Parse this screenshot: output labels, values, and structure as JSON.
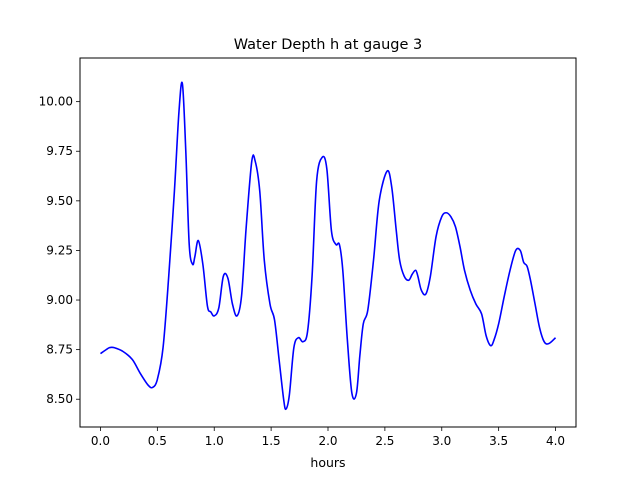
{
  "chart_data": {
    "type": "line",
    "title": "Water Depth h at gauge 3",
    "xlabel": "hours",
    "ylabel": "",
    "xlim": [
      -0.18,
      4.18
    ],
    "ylim": [
      8.36,
      10.22
    ],
    "grid": false,
    "x_ticks": [
      0.0,
      0.5,
      1.0,
      1.5,
      2.0,
      2.5,
      3.0,
      3.5,
      4.0
    ],
    "x_tick_labels": [
      "0.0",
      "0.5",
      "1.0",
      "1.5",
      "2.0",
      "2.5",
      "3.0",
      "3.5",
      "4.0"
    ],
    "y_ticks": [
      8.5,
      8.75,
      9.0,
      9.25,
      9.5,
      9.75,
      10.0
    ],
    "y_tick_labels": [
      "8.50",
      "8.75",
      "9.00",
      "9.25",
      "9.50",
      "9.75",
      "10.00"
    ],
    "series": [
      {
        "color": "#0000ff",
        "x": [
          0.0,
          0.05,
          0.08,
          0.12,
          0.2,
          0.28,
          0.35,
          0.42,
          0.46,
          0.5,
          0.55,
          0.6,
          0.65,
          0.69,
          0.72,
          0.75,
          0.78,
          0.81,
          0.83,
          0.86,
          0.9,
          0.94,
          0.97,
          1.0,
          1.04,
          1.08,
          1.12,
          1.16,
          1.2,
          1.24,
          1.28,
          1.33,
          1.36,
          1.4,
          1.44,
          1.49,
          1.53,
          1.57,
          1.61,
          1.63,
          1.66,
          1.7,
          1.74,
          1.78,
          1.82,
          1.86,
          1.9,
          1.95,
          1.99,
          2.03,
          2.07,
          2.1,
          2.13,
          2.17,
          2.21,
          2.25,
          2.28,
          2.31,
          2.35,
          2.4,
          2.45,
          2.52,
          2.56,
          2.6,
          2.63,
          2.67,
          2.71,
          2.74,
          2.77,
          2.79,
          2.82,
          2.86,
          2.9,
          2.95,
          3.0,
          3.04,
          3.08,
          3.12,
          3.16,
          3.2,
          3.25,
          3.3,
          3.35,
          3.39,
          3.43,
          3.46,
          3.5,
          3.55,
          3.6,
          3.65,
          3.69,
          3.72,
          3.75,
          3.78,
          3.82,
          3.86,
          3.9,
          3.94,
          4.0
        ],
        "y": [
          8.73,
          8.75,
          8.76,
          8.76,
          8.74,
          8.7,
          8.63,
          8.57,
          8.56,
          8.6,
          8.76,
          9.12,
          9.55,
          9.95,
          10.09,
          9.75,
          9.28,
          9.18,
          9.22,
          9.3,
          9.18,
          8.97,
          8.94,
          8.92,
          8.96,
          9.12,
          9.11,
          8.98,
          8.92,
          9.02,
          9.36,
          9.7,
          9.7,
          9.55,
          9.2,
          8.98,
          8.9,
          8.7,
          8.5,
          8.45,
          8.52,
          8.76,
          8.81,
          8.79,
          8.84,
          9.12,
          9.6,
          9.72,
          9.66,
          9.35,
          9.28,
          9.28,
          9.15,
          8.8,
          8.53,
          8.53,
          8.72,
          8.88,
          8.95,
          9.2,
          9.5,
          9.65,
          9.57,
          9.35,
          9.2,
          9.12,
          9.1,
          9.13,
          9.15,
          9.12,
          9.05,
          9.03,
          9.12,
          9.32,
          9.42,
          9.44,
          9.42,
          9.37,
          9.27,
          9.15,
          9.05,
          8.98,
          8.93,
          8.82,
          8.77,
          8.8,
          8.88,
          9.02,
          9.15,
          9.25,
          9.25,
          9.19,
          9.17,
          9.1,
          8.98,
          8.86,
          8.79,
          8.78,
          8.81
        ]
      }
    ]
  }
}
